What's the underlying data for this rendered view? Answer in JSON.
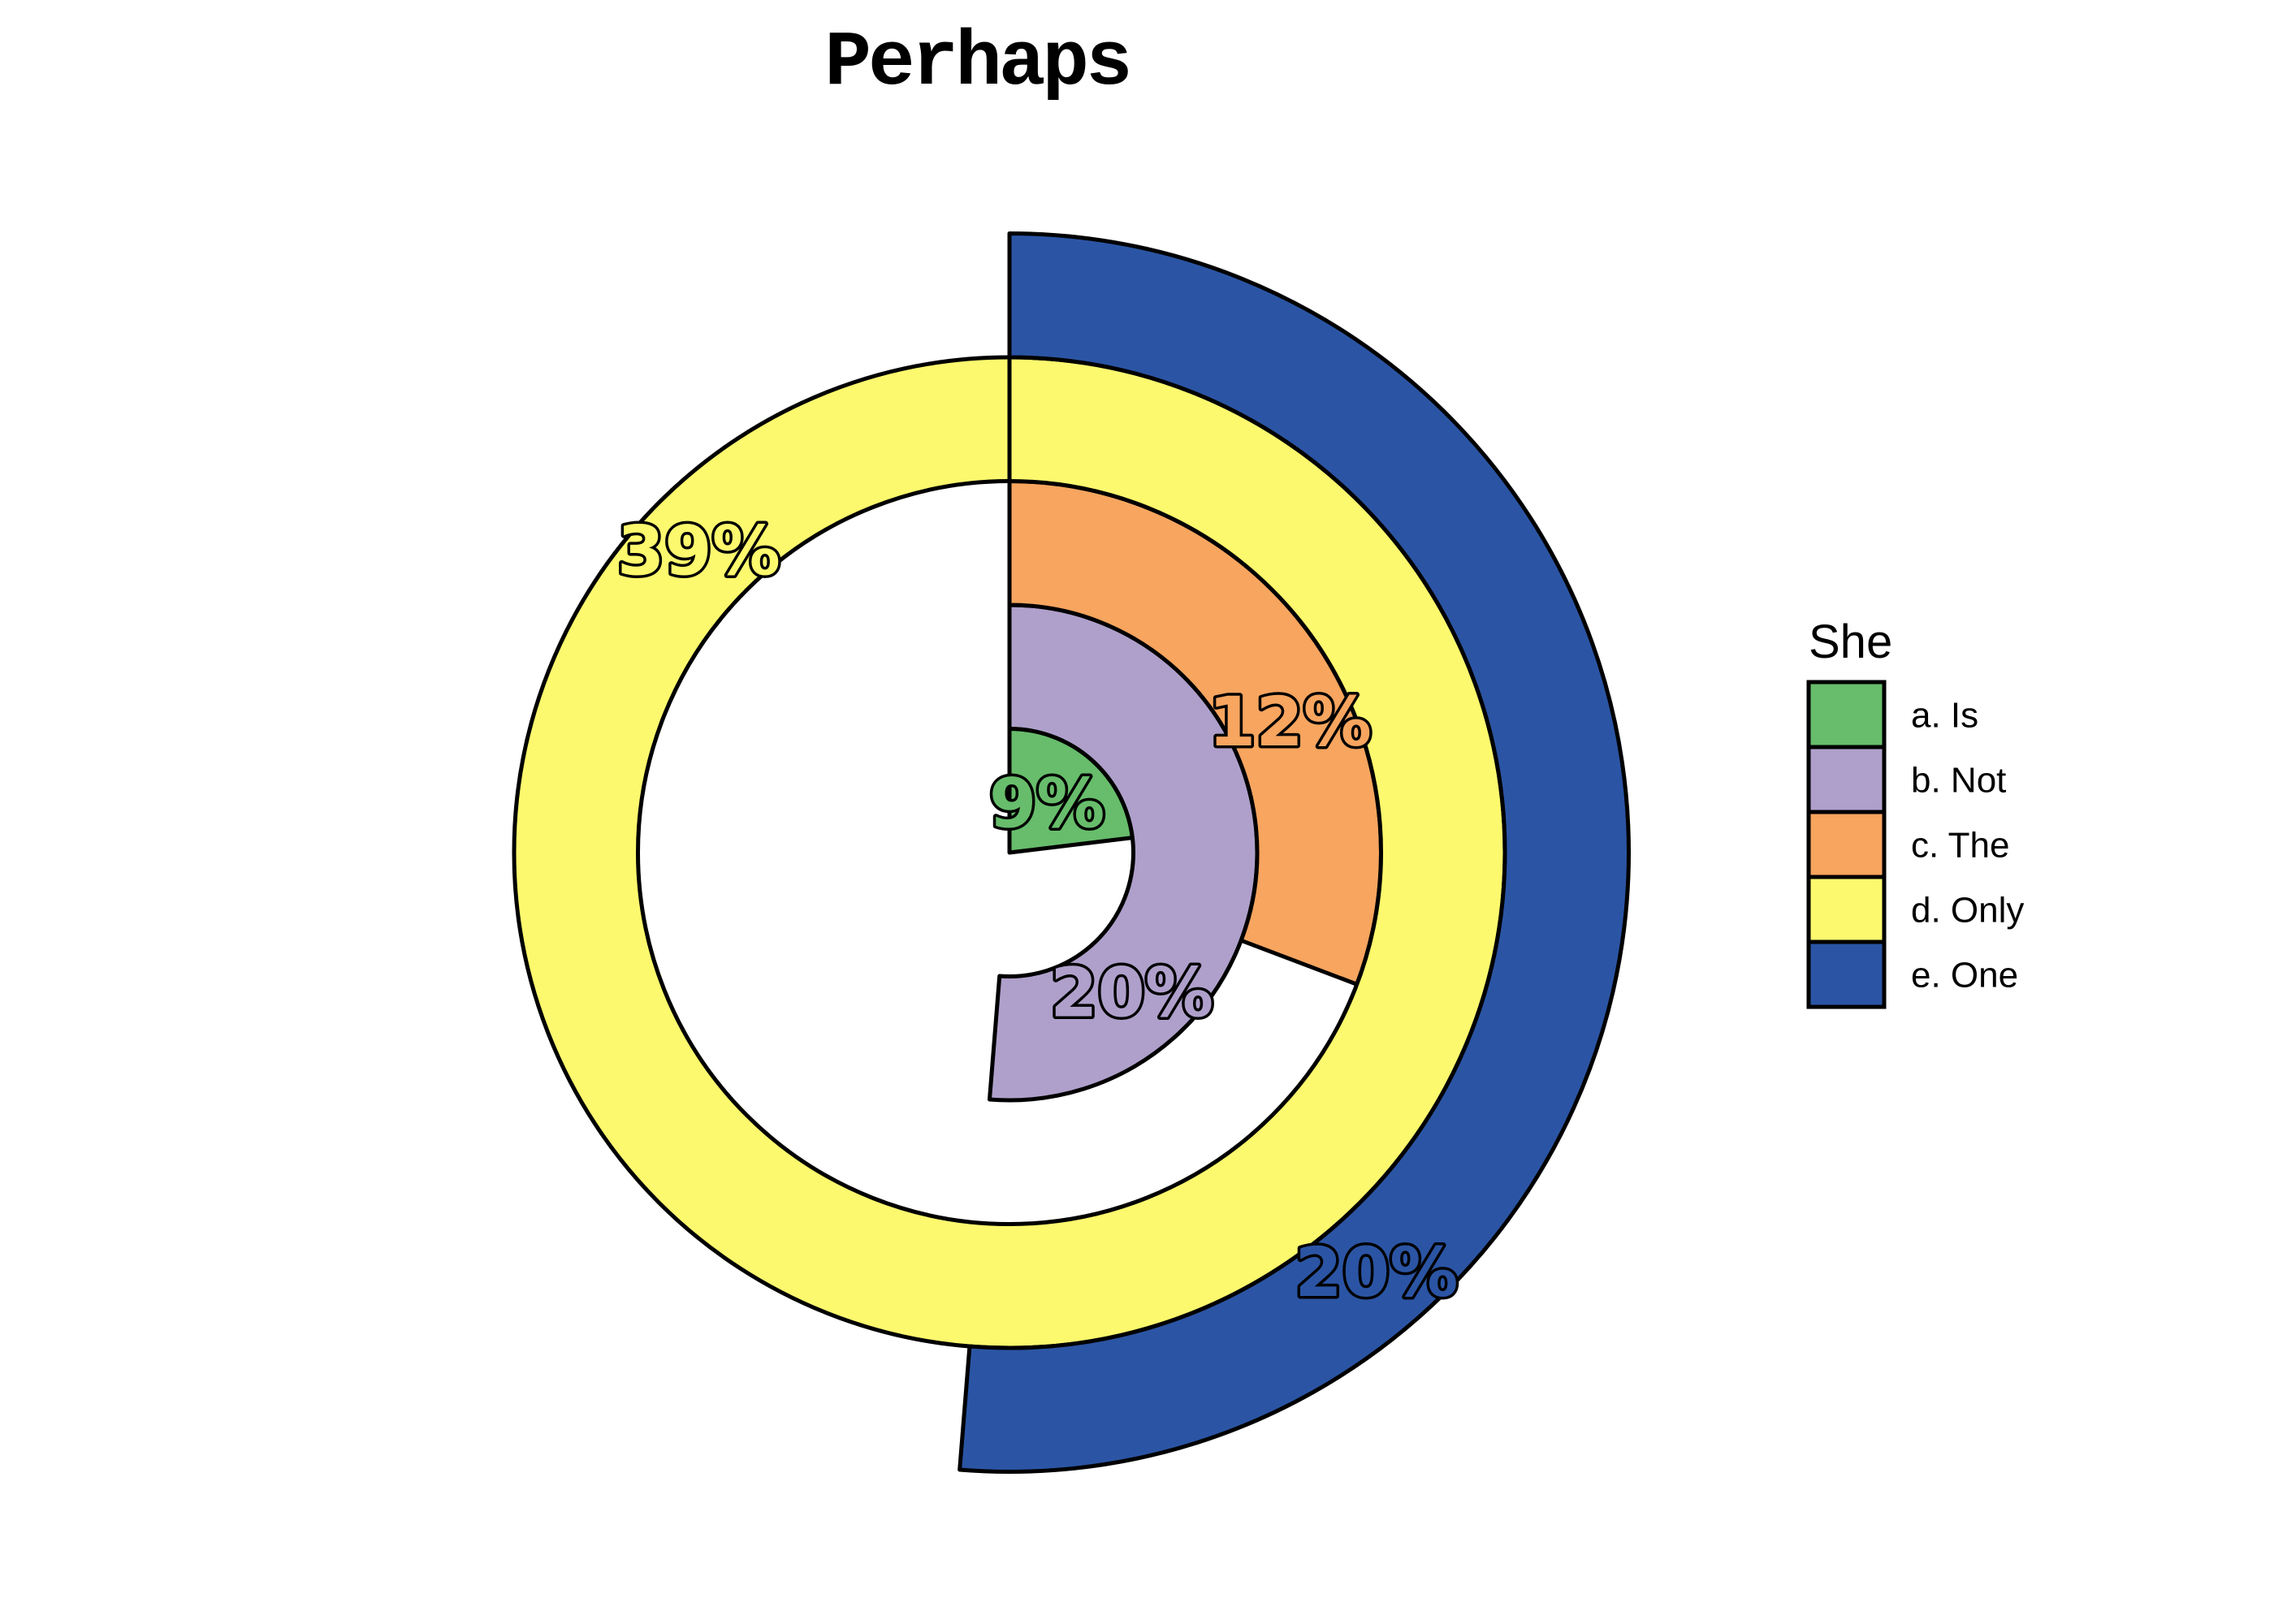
{
  "chart_data": {
    "type": "pie",
    "variant": "concentric-polar-rings",
    "title": "Perhaps",
    "legend_title": "She",
    "categories": [
      "a. Is",
      "b. Not",
      "c. The",
      "d. Only",
      "e. One"
    ],
    "values": [
      9,
      20,
      12,
      39,
      20
    ],
    "labels": [
      "9%",
      "20%",
      "12%",
      "39%",
      "20%"
    ],
    "colors": [
      "#67BD6B",
      "#AFA0CB",
      "#F7A55F",
      "#FDF96E",
      "#2B55A4"
    ],
    "layout_hints": {
      "rings_order": "inner-to-outer",
      "start_angle_deg": 0,
      "direction": "clockwise",
      "angle_scale": "value / max(values) * 360deg",
      "label_offset_from_arc_end_deg": 45.8,
      "label_radius": "ring-midpoint",
      "grid": "off",
      "background": "#ffffff",
      "outline_color": "#000000",
      "legend_position": "right"
    }
  }
}
